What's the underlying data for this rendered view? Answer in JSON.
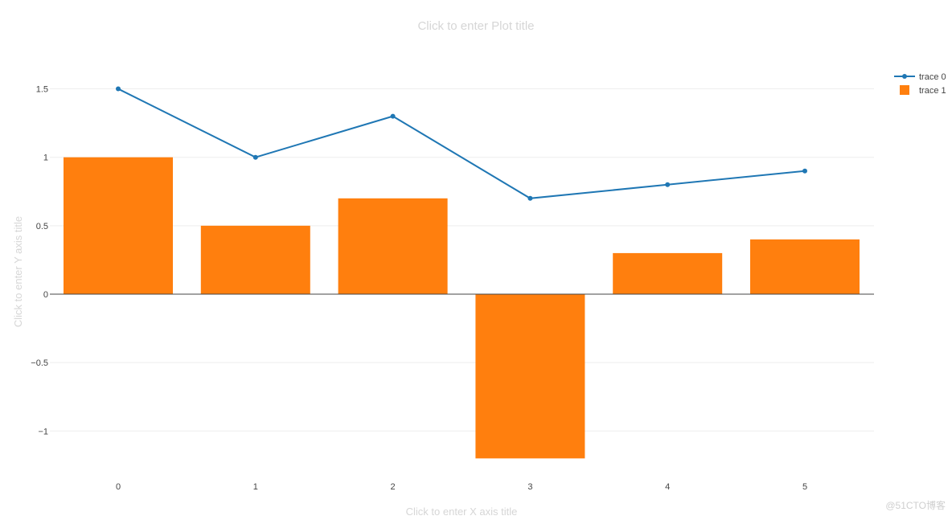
{
  "chart_data": {
    "type": "bar+line",
    "title": "Click to enter Plot title",
    "xlabel": "Click to enter X axis title",
    "ylabel": "Click to enter Y axis title",
    "x": [
      0,
      1,
      2,
      3,
      4,
      5
    ],
    "x_tick_labels": [
      "0",
      "1",
      "2",
      "3",
      "4",
      "5"
    ],
    "y_ticks": [
      -1,
      -0.5,
      0,
      0.5,
      1,
      1.5
    ],
    "y_tick_labels": [
      "−1",
      "−0.5",
      "0",
      "0.5",
      "1",
      "1.5"
    ],
    "ylim": [
      -1.2,
      1.5
    ],
    "grid": true,
    "legend_position": "top-right",
    "series": [
      {
        "name": "trace 0",
        "type": "line",
        "mode": "lines+markers",
        "color": "#1f77b4",
        "values": [
          1.5,
          1.0,
          1.3,
          0.7,
          0.8,
          0.9
        ]
      },
      {
        "name": "trace 1",
        "type": "bar",
        "color": "#ff7f0e",
        "values": [
          1.0,
          0.5,
          0.7,
          -1.2,
          0.3,
          0.4
        ]
      }
    ]
  },
  "watermark": "@51CTO博客"
}
